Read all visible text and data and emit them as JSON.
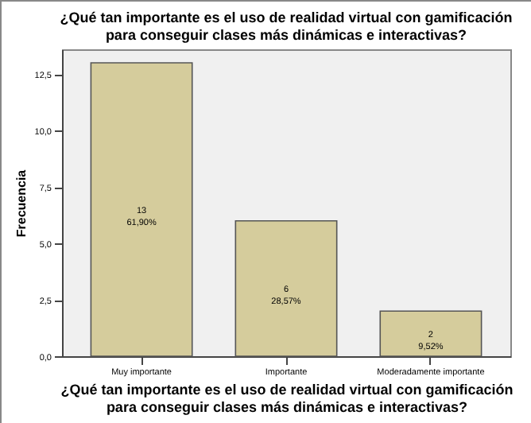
{
  "chart_data": {
    "type": "bar",
    "title": "¿Qué tan importante es el uso de realidad virtual con gamificación para conseguir clases más dinámicas e interactivas?",
    "xlabel": "¿Qué tan importante es el uso de realidad virtual con gamificación para conseguir clases más dinámicas e interactivas?",
    "ylabel": "Frecuencia",
    "categories": [
      "Muy importante",
      "Importante",
      "Moderadamente importante"
    ],
    "values": [
      13,
      6,
      2
    ],
    "value_labels": [
      "13\n61,90%",
      "6\n28,57%",
      "2\n9,52%"
    ],
    "color": "#d5cc9c",
    "ylim": [
      0,
      13.6
    ],
    "yticks": [
      {
        "value": 0,
        "label": "0,0"
      },
      {
        "value": 2.5,
        "label": "2,5"
      },
      {
        "value": 5,
        "label": "5,0"
      },
      {
        "value": 7.5,
        "label": "7,5"
      },
      {
        "value": 10,
        "label": "10,0"
      },
      {
        "value": 12.5,
        "label": "12,5"
      }
    ],
    "grid": false
  }
}
